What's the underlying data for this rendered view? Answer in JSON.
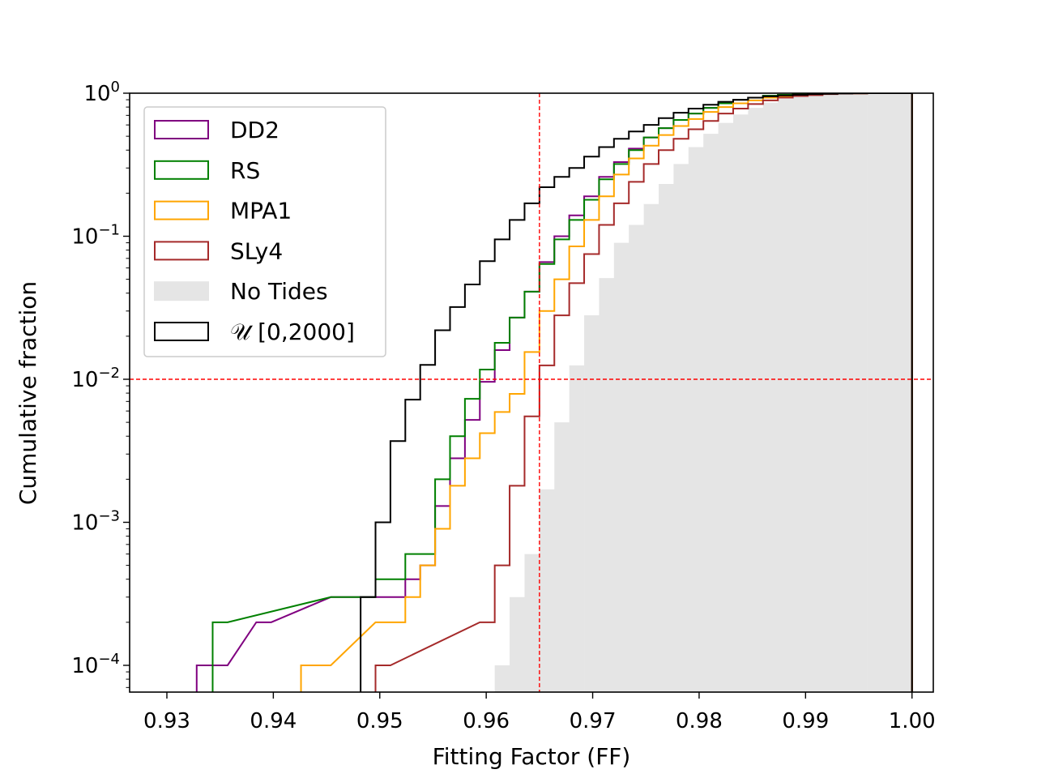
{
  "chart_data": {
    "type": "step-histogram-cumulative",
    "title": "",
    "xlabel": "Fitting Factor (FF)",
    "ylabel": "Cumulative fraction",
    "xscale": "linear",
    "yscale": "log",
    "xlim": [
      0.9265,
      1.002
    ],
    "ylim": [
      6.5e-05,
      1.0
    ],
    "xticks": [
      0.93,
      0.94,
      0.95,
      0.96,
      0.97,
      0.98,
      0.99,
      1.0
    ],
    "xtick_labels": [
      "0.93",
      "0.94",
      "0.95",
      "0.96",
      "0.97",
      "0.98",
      "0.99",
      "1.00"
    ],
    "yticks": [
      {
        "value": 0.0001,
        "base": "10",
        "exp": "−4"
      },
      {
        "value": 0.001,
        "base": "10",
        "exp": "−3"
      },
      {
        "value": 0.01,
        "base": "10",
        "exp": "−2"
      },
      {
        "value": 0.1,
        "base": "10",
        "exp": "−1"
      },
      {
        "value": 1.0,
        "base": "10",
        "exp": "0"
      }
    ],
    "legend_position": "top-left",
    "reference_lines": {
      "color": "#ff0000",
      "vertical_x": 0.965,
      "horizontal_y": 0.01
    },
    "series": [
      {
        "name": "DD2",
        "color": "#800080",
        "style": "step",
        "x": [
          0.9328,
          0.9343,
          0.9384,
          0.9454,
          0.9468,
          0.9482,
          0.9496,
          0.951,
          0.9524,
          0.9538,
          0.9552,
          0.9566,
          0.958,
          0.9594,
          0.9608,
          0.9622,
          0.9636,
          0.965,
          0.9664,
          0.9678,
          0.9692,
          0.9706,
          0.972,
          0.9734,
          0.9748,
          0.9762,
          0.9776,
          0.979,
          0.9804,
          0.9818,
          0.9832,
          0.9846,
          0.986,
          0.9874,
          0.9888,
          0.9902,
          0.9916,
          0.993,
          0.9944,
          0.9958,
          0.9972,
          0.9986
        ],
        "y": [
          0.0001,
          0.0001,
          0.0002,
          0.0003,
          0.0003,
          0.0003,
          0.0003,
          0.0003,
          0.0004,
          0.0005,
          0.0013,
          0.0028,
          0.0052,
          0.0096,
          0.016,
          0.027,
          0.041,
          0.066,
          0.1,
          0.14,
          0.19,
          0.26,
          0.33,
          0.41,
          0.49,
          0.57,
          0.65,
          0.72,
          0.79,
          0.85,
          0.9,
          0.93,
          0.96,
          0.975,
          0.985,
          0.992,
          0.995,
          0.998,
          0.999,
          1.0,
          1.0,
          1.0
        ]
      },
      {
        "name": "RS",
        "color": "#008000",
        "style": "step",
        "x": [
          0.9343,
          0.9454,
          0.9482,
          0.9496,
          0.951,
          0.9524,
          0.9538,
          0.9552,
          0.9566,
          0.958,
          0.9594,
          0.9608,
          0.9622,
          0.9636,
          0.965,
          0.9664,
          0.9678,
          0.9692,
          0.9706,
          0.972,
          0.9734,
          0.9748,
          0.9762,
          0.9776,
          0.979,
          0.9804,
          0.9818,
          0.9832,
          0.9846,
          0.986,
          0.9874,
          0.9888,
          0.9902,
          0.9916,
          0.993,
          0.9944,
          0.9958,
          0.9972,
          0.9986
        ],
        "y": [
          0.0002,
          0.0003,
          0.0003,
          0.0004,
          0.0004,
          0.0006,
          0.0006,
          0.002,
          0.004,
          0.0073,
          0.0117,
          0.018,
          0.027,
          0.041,
          0.064,
          0.095,
          0.13,
          0.18,
          0.25,
          0.32,
          0.4,
          0.49,
          0.57,
          0.65,
          0.72,
          0.79,
          0.85,
          0.9,
          0.93,
          0.96,
          0.975,
          0.985,
          0.992,
          0.995,
          0.998,
          0.999,
          1.0,
          1.0,
          1.0
        ]
      },
      {
        "name": "MPA1",
        "color": "#ffa500",
        "style": "step",
        "x": [
          0.9426,
          0.944,
          0.9496,
          0.951,
          0.9524,
          0.9538,
          0.9552,
          0.9566,
          0.958,
          0.9594,
          0.9608,
          0.9622,
          0.9636,
          0.965,
          0.9664,
          0.9678,
          0.9692,
          0.9706,
          0.972,
          0.9734,
          0.9748,
          0.9762,
          0.9776,
          0.979,
          0.9804,
          0.9818,
          0.9832,
          0.9846,
          0.986,
          0.9874,
          0.9888,
          0.9902,
          0.9916,
          0.993,
          0.9944,
          0.9958,
          0.9972,
          0.9986
        ],
        "y": [
          0.0001,
          0.0001,
          0.0002,
          0.0002,
          0.0003,
          0.0005,
          0.0009,
          0.0018,
          0.0028,
          0.0042,
          0.0059,
          0.0079,
          0.0155,
          0.03,
          0.05,
          0.085,
          0.13,
          0.19,
          0.27,
          0.35,
          0.43,
          0.51,
          0.59,
          0.66,
          0.74,
          0.8,
          0.85,
          0.89,
          0.93,
          0.955,
          0.97,
          0.98,
          0.99,
          0.995,
          0.998,
          1.0,
          1.0,
          1.0
        ]
      },
      {
        "name": "SLy4",
        "color": "#a52a2a",
        "style": "step",
        "x": [
          0.9496,
          0.9594,
          0.9608,
          0.9622,
          0.9636,
          0.965,
          0.9664,
          0.9678,
          0.9692,
          0.9706,
          0.972,
          0.9734,
          0.9748,
          0.9762,
          0.9776,
          0.979,
          0.9804,
          0.9818,
          0.9832,
          0.9846,
          0.986,
          0.9874,
          0.9888,
          0.9902,
          0.9916,
          0.993,
          0.9944,
          0.9958,
          0.9972,
          0.9986
        ],
        "y": [
          0.0001,
          0.0002,
          0.0005,
          0.0018,
          0.0055,
          0.0125,
          0.028,
          0.047,
          0.075,
          0.12,
          0.17,
          0.24,
          0.32,
          0.4,
          0.48,
          0.56,
          0.64,
          0.72,
          0.78,
          0.84,
          0.89,
          0.93,
          0.955,
          0.97,
          0.985,
          0.993,
          0.997,
          1.0,
          1.0,
          1.0
        ]
      },
      {
        "name": "No Tides",
        "color": "#e5e5e5",
        "style": "filled",
        "x": [
          0.9608,
          0.9622,
          0.9636,
          0.965,
          0.9664,
          0.9678,
          0.9692,
          0.9706,
          0.972,
          0.9734,
          0.9748,
          0.9762,
          0.9776,
          0.979,
          0.9804,
          0.9818,
          0.9832,
          0.9846,
          0.986,
          0.9874,
          0.9888,
          0.9902,
          0.9916,
          0.993,
          0.9944,
          0.9958,
          0.9972,
          0.9986
        ],
        "y": [
          0.0001,
          0.0003,
          0.0006,
          0.0017,
          0.005,
          0.0125,
          0.028,
          0.051,
          0.09,
          0.12,
          0.168,
          0.232,
          0.32,
          0.42,
          0.52,
          0.62,
          0.71,
          0.79,
          0.86,
          0.91,
          0.945,
          0.97,
          0.985,
          0.993,
          0.997,
          1.0,
          1.0,
          1.0
        ]
      },
      {
        "name": "𝒰 [0,2000]",
        "color": "#000000",
        "style": "step",
        "x": [
          0.9482,
          0.9496,
          0.951,
          0.9524,
          0.9538,
          0.9552,
          0.9566,
          0.958,
          0.9594,
          0.9608,
          0.9622,
          0.9636,
          0.965,
          0.9664,
          0.9678,
          0.9692,
          0.9706,
          0.972,
          0.9734,
          0.9748,
          0.9762,
          0.9776,
          0.979,
          0.9804,
          0.9818,
          0.9832,
          0.9846,
          0.986,
          0.9874,
          0.9888,
          0.9902,
          0.9916,
          0.993,
          0.9944,
          0.9958,
          0.9972,
          0.9986
        ],
        "y": [
          0.0003,
          0.001,
          0.0037,
          0.0072,
          0.0126,
          0.022,
          0.032,
          0.046,
          0.067,
          0.095,
          0.13,
          0.17,
          0.22,
          0.26,
          0.3,
          0.36,
          0.42,
          0.48,
          0.54,
          0.6,
          0.67,
          0.73,
          0.78,
          0.83,
          0.87,
          0.9,
          0.93,
          0.95,
          0.965,
          0.975,
          0.985,
          0.99,
          0.995,
          0.998,
          1.0,
          1.0,
          1.0
        ]
      }
    ]
  }
}
